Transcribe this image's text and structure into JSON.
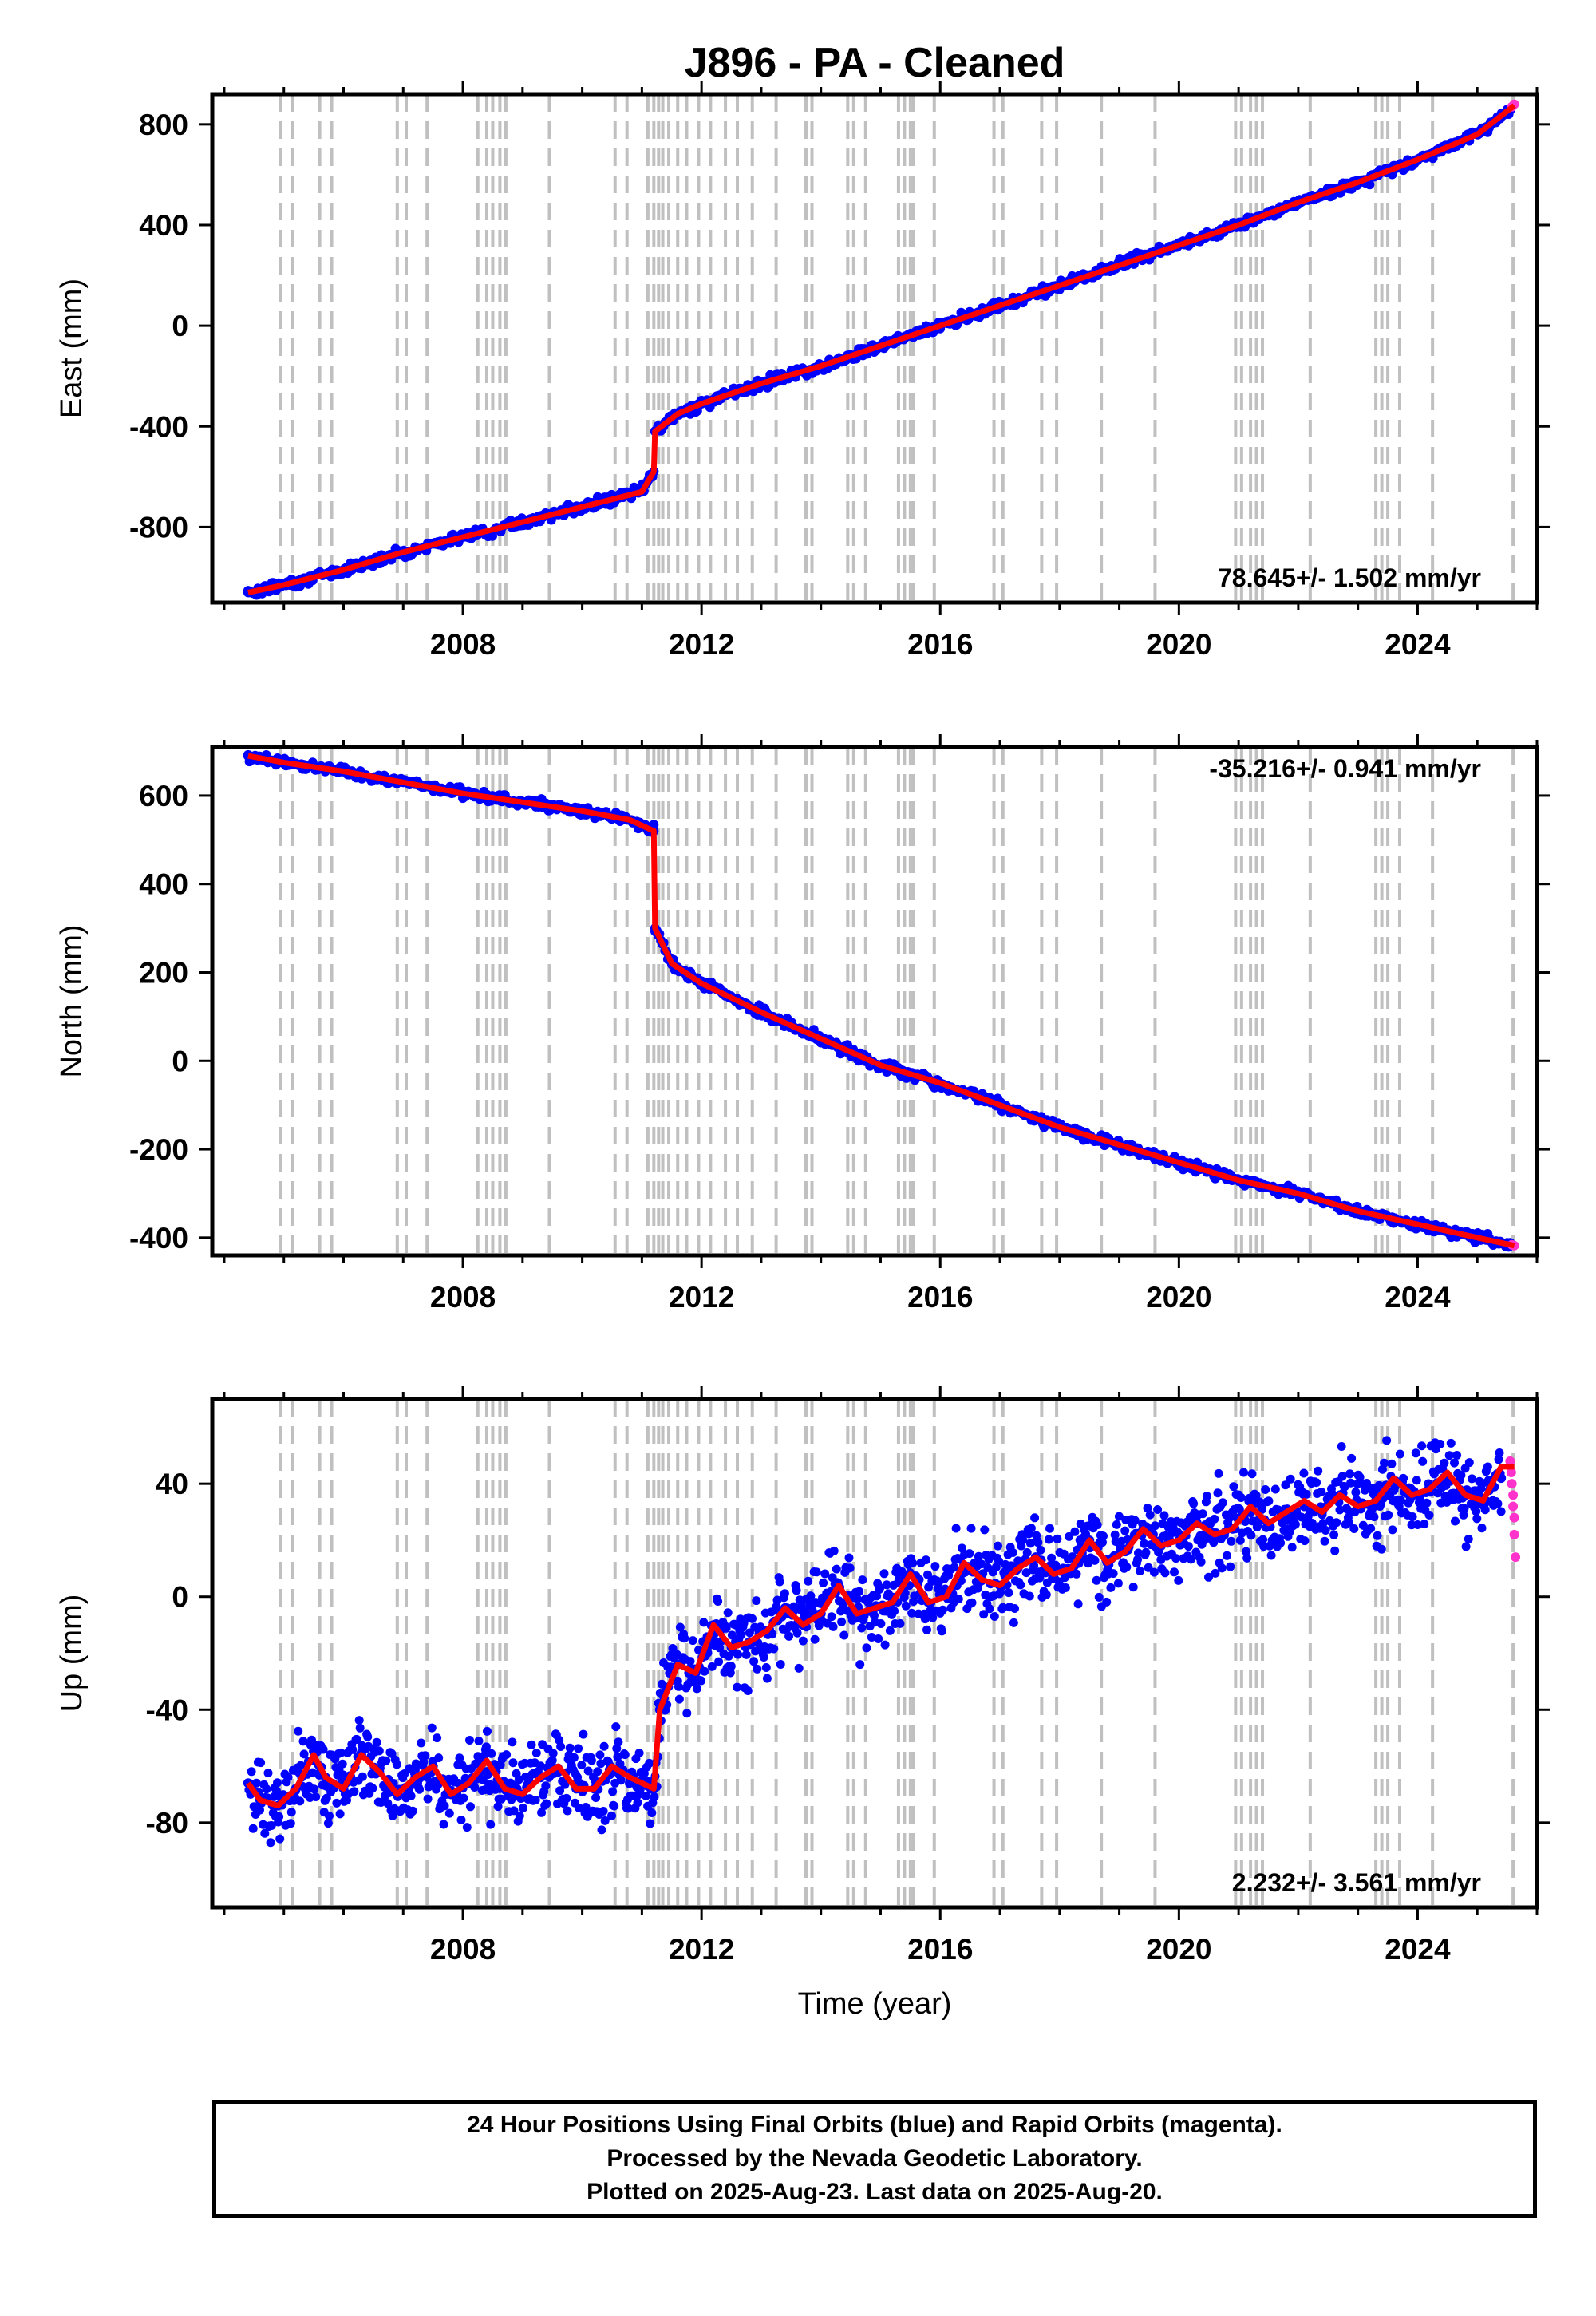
{
  "title": "J896  - PA - Cleaned",
  "colors": {
    "final_points": "#0000ff",
    "rapid_points": "#ff33cc",
    "model_line": "#ff0000",
    "event_lines": "#c0c0c0",
    "axes": "#000000"
  },
  "footer": {
    "line1": "24 Hour Positions Using Final Orbits (blue) and Rapid Orbits (magenta).",
    "line2": "Processed by the Nevada Geodetic Laboratory.",
    "line3": "Plotted on 2025-Aug-23. Last data on 2025-Aug-20."
  },
  "chart_data": [
    {
      "type": "scatter",
      "panel": "east",
      "ylabel": "East (mm)",
      "xlabel": "",
      "rate_label": "78.645+/- 1.502 mm/yr",
      "rate_label_position": "bottom-right",
      "xlim": [
        2003.8,
        2026.0
      ],
      "ylim": [
        -1100,
        920
      ],
      "xticks": [
        "2008",
        "2012",
        "2016",
        "2020",
        "2024"
      ],
      "xtick_values": [
        2008,
        2012,
        2016,
        2020,
        2024
      ],
      "yticks": [
        "800",
        "400",
        "0",
        "-400",
        "-800"
      ],
      "ytick_values": [
        800,
        400,
        0,
        -400,
        -800
      ],
      "series": [
        {
          "role": "final",
          "x": [
            2004.4,
            2005.0,
            2006.0,
            2007.0,
            2008.0,
            2009.0,
            2010.0,
            2011.0,
            2011.2,
            2011.22,
            2011.6,
            2012.0,
            2013.0,
            2014.0,
            2015.0,
            2016.0,
            2017.0,
            2018.0,
            2019.0,
            2020.0,
            2021.0,
            2022.0,
            2023.0,
            2024.0,
            2025.0,
            2025.55
          ],
          "y": [
            -1060,
            -1030,
            -970,
            -900,
            -840,
            -780,
            -720,
            -660,
            -580,
            -420,
            -350,
            -310,
            -230,
            -160,
            -80,
            0,
            80,
            160,
            240,
            320,
            400,
            490,
            570,
            660,
            760,
            860
          ]
        },
        {
          "role": "rapid",
          "x": [
            2025.58,
            2025.62
          ],
          "y": [
            870,
            880
          ]
        }
      ],
      "model": {
        "x": [
          2004.4,
          2005.0,
          2006.0,
          2007.0,
          2008.0,
          2009.0,
          2010.0,
          2011.0,
          2011.2,
          2011.22,
          2011.6,
          2012.0,
          2013.0,
          2014.0,
          2015.0,
          2016.0,
          2017.0,
          2018.0,
          2019.0,
          2020.0,
          2021.0,
          2022.0,
          2023.0,
          2024.0,
          2025.0,
          2025.62
        ],
        "y": [
          -1060,
          -1030,
          -970,
          -900,
          -840,
          -780,
          -720,
          -660,
          -580,
          -420,
          -350,
          -310,
          -230,
          -160,
          -80,
          0,
          80,
          160,
          240,
          320,
          400,
          490,
          570,
          660,
          760,
          875
        ]
      },
      "events": [
        2004.95,
        2005.15,
        2005.6,
        2005.8,
        2006.9,
        2007.05,
        2007.4,
        2008.25,
        2008.4,
        2008.5,
        2008.62,
        2008.72,
        2009.45,
        2010.55,
        2010.75,
        2011.1,
        2011.2,
        2011.28,
        2011.35,
        2011.45,
        2011.6,
        2011.75,
        2011.95,
        2012.15,
        2012.4,
        2012.6,
        2012.85,
        2013.25,
        2013.75,
        2013.85,
        2014.45,
        2014.55,
        2014.75,
        2015.3,
        2015.4,
        2015.5,
        2015.55,
        2015.9,
        2016.9,
        2017.05,
        2017.7,
        2017.95,
        2018.7,
        2019.6,
        2020.95,
        2021.05,
        2021.2,
        2021.3,
        2021.4,
        2022.2,
        2023.3,
        2023.4,
        2023.5,
        2023.7,
        2024.25,
        2025.6
      ]
    },
    {
      "type": "scatter",
      "panel": "north",
      "ylabel": "North (mm)",
      "xlabel": "",
      "rate_label": "-35.216+/- 0.941 mm/yr",
      "rate_label_position": "top-right",
      "xlim": [
        2003.8,
        2026.0
      ],
      "ylim": [
        -440,
        710
      ],
      "xticks": [
        "2008",
        "2012",
        "2016",
        "2020",
        "2024"
      ],
      "xtick_values": [
        2008,
        2012,
        2016,
        2020,
        2024
      ],
      "yticks": [
        "600",
        "400",
        "200",
        "0",
        "-200",
        "-400"
      ],
      "ytick_values": [
        600,
        400,
        200,
        0,
        -200,
        -400
      ],
      "series": [
        {
          "role": "final",
          "x": [
            2004.4,
            2005.0,
            2006.0,
            2007.0,
            2008.0,
            2009.0,
            2010.0,
            2010.8,
            2011.2,
            2011.22,
            2011.5,
            2012.0,
            2013.0,
            2014.0,
            2015.0,
            2016.0,
            2017.0,
            2018.0,
            2019.0,
            2020.0,
            2021.0,
            2022.0,
            2023.0,
            2024.0,
            2025.0,
            2025.55
          ],
          "y": [
            690,
            675,
            655,
            630,
            605,
            585,
            565,
            545,
            520,
            300,
            220,
            175,
            110,
            50,
            -10,
            -50,
            -100,
            -150,
            -190,
            -230,
            -270,
            -300,
            -340,
            -370,
            -400,
            -415
          ]
        },
        {
          "role": "rapid",
          "x": [
            2025.58,
            2025.62
          ],
          "y": [
            -416,
            -418
          ]
        }
      ],
      "model": {
        "x": [
          2004.4,
          2005.0,
          2006.0,
          2007.0,
          2008.0,
          2009.0,
          2010.0,
          2010.8,
          2011.2,
          2011.22,
          2011.5,
          2012.0,
          2013.0,
          2014.0,
          2015.0,
          2016.0,
          2017.0,
          2018.0,
          2019.0,
          2020.0,
          2021.0,
          2022.0,
          2023.0,
          2024.0,
          2025.0,
          2025.62
        ],
        "y": [
          690,
          675,
          655,
          630,
          605,
          585,
          565,
          545,
          520,
          300,
          220,
          175,
          110,
          50,
          -10,
          -50,
          -100,
          -150,
          -190,
          -230,
          -270,
          -300,
          -340,
          -370,
          -400,
          -418
        ]
      },
      "events": [
        2004.95,
        2005.15,
        2005.6,
        2005.8,
        2006.9,
        2007.05,
        2007.4,
        2008.25,
        2008.4,
        2008.5,
        2008.62,
        2008.72,
        2009.45,
        2010.55,
        2010.75,
        2011.1,
        2011.2,
        2011.28,
        2011.35,
        2011.45,
        2011.6,
        2011.75,
        2011.95,
        2012.15,
        2012.4,
        2012.6,
        2012.85,
        2013.25,
        2013.75,
        2013.85,
        2014.45,
        2014.55,
        2014.75,
        2015.3,
        2015.4,
        2015.5,
        2015.55,
        2015.9,
        2016.9,
        2017.05,
        2017.7,
        2017.95,
        2018.7,
        2019.6,
        2020.95,
        2021.05,
        2021.2,
        2021.3,
        2021.4,
        2022.2,
        2023.3,
        2023.4,
        2023.5,
        2023.7,
        2024.25,
        2025.6
      ]
    },
    {
      "type": "scatter",
      "panel": "up",
      "ylabel": "Up (mm)",
      "xlabel": "Time (year)",
      "rate_label": "2.232+/- 3.561 mm/yr",
      "rate_label_position": "bottom-right",
      "xlim": [
        2003.8,
        2026.0
      ],
      "ylim": [
        -110,
        70
      ],
      "xticks": [
        "2008",
        "2012",
        "2016",
        "2020",
        "2024"
      ],
      "xtick_values": [
        2008,
        2012,
        2016,
        2020,
        2024
      ],
      "yticks": [
        "40",
        "0",
        "-40",
        "-80"
      ],
      "ytick_values": [
        40,
        0,
        -40,
        -80
      ],
      "series": [
        {
          "role": "final",
          "x": [
            2004.4,
            2004.6,
            2004.9,
            2005.2,
            2005.5,
            2005.7,
            2006.0,
            2006.3,
            2006.6,
            2006.9,
            2007.2,
            2007.5,
            2007.8,
            2008.1,
            2008.4,
            2008.7,
            2009.0,
            2009.3,
            2009.6,
            2009.9,
            2010.2,
            2010.5,
            2010.8,
            2011.1,
            2011.2,
            2011.3,
            2011.6,
            2011.9,
            2012.2,
            2012.5,
            2012.8,
            2013.1,
            2013.4,
            2013.7,
            2014.0,
            2014.3,
            2014.6,
            2014.9,
            2015.2,
            2015.5,
            2015.8,
            2016.1,
            2016.4,
            2016.7,
            2017.0,
            2017.3,
            2017.6,
            2017.9,
            2018.2,
            2018.5,
            2018.8,
            2019.1,
            2019.4,
            2019.7,
            2020.0,
            2020.3,
            2020.6,
            2020.9,
            2021.2,
            2021.5,
            2021.8,
            2022.1,
            2022.4,
            2022.7,
            2023.0,
            2023.3,
            2023.6,
            2023.9,
            2024.2,
            2024.5,
            2024.8,
            2025.1,
            2025.4
          ],
          "y": [
            -66,
            -72,
            -74,
            -68,
            -58,
            -64,
            -68,
            -56,
            -62,
            -70,
            -64,
            -60,
            -70,
            -66,
            -62,
            -68,
            -70,
            -64,
            -62,
            -68,
            -68,
            -62,
            -64,
            -67,
            -68,
            -40,
            -24,
            -27,
            -10,
            -18,
            -16,
            -12,
            -4,
            -10,
            -6,
            4,
            -6,
            -4,
            -2,
            8,
            -2,
            0,
            10,
            6,
            4,
            10,
            14,
            8,
            10,
            20,
            12,
            16,
            24,
            18,
            20,
            26,
            22,
            24,
            30,
            26,
            30,
            32,
            30,
            36,
            32,
            34,
            40,
            36,
            38,
            42,
            36,
            34,
            42
          ]
        },
        {
          "role": "rapid",
          "x": [
            2025.55,
            2025.57,
            2025.58,
            2025.6,
            2025.6,
            2025.62,
            2025.62,
            2025.64
          ],
          "y": [
            48,
            44,
            40,
            36,
            32,
            28,
            22,
            14
          ]
        }
      ],
      "model": {
        "x": [
          2004.4,
          2004.6,
          2004.9,
          2005.2,
          2005.5,
          2005.7,
          2006.0,
          2006.3,
          2006.6,
          2006.9,
          2007.2,
          2007.5,
          2007.8,
          2008.1,
          2008.4,
          2008.7,
          2009.0,
          2009.3,
          2009.6,
          2009.9,
          2010.2,
          2010.5,
          2010.8,
          2011.1,
          2011.2,
          2011.3,
          2011.6,
          2011.9,
          2012.2,
          2012.5,
          2012.8,
          2013.1,
          2013.4,
          2013.7,
          2014.0,
          2014.3,
          2014.6,
          2014.9,
          2015.2,
          2015.5,
          2015.8,
          2016.1,
          2016.4,
          2016.7,
          2017.0,
          2017.3,
          2017.6,
          2017.9,
          2018.2,
          2018.5,
          2018.8,
          2019.1,
          2019.4,
          2019.7,
          2020.0,
          2020.3,
          2020.6,
          2020.9,
          2021.2,
          2021.5,
          2021.8,
          2022.1,
          2022.4,
          2022.7,
          2023.0,
          2023.3,
          2023.6,
          2023.9,
          2024.2,
          2024.5,
          2024.8,
          2025.1,
          2025.4,
          2025.62
        ],
        "y": [
          -66,
          -72,
          -74,
          -68,
          -56,
          -64,
          -68,
          -56,
          -62,
          -70,
          -64,
          -60,
          -70,
          -66,
          -58,
          -68,
          -70,
          -64,
          -60,
          -68,
          -68,
          -60,
          -64,
          -67,
          -68,
          -40,
          -24,
          -27,
          -10,
          -18,
          -16,
          -12,
          -4,
          -10,
          -6,
          4,
          -6,
          -4,
          -2,
          8,
          -2,
          0,
          12,
          6,
          4,
          10,
          14,
          8,
          10,
          20,
          12,
          16,
          24,
          18,
          20,
          26,
          22,
          24,
          32,
          26,
          30,
          34,
          30,
          36,
          32,
          34,
          42,
          36,
          38,
          44,
          36,
          34,
          46,
          46
        ]
      },
      "events": [
        2004.95,
        2005.15,
        2005.6,
        2005.8,
        2006.9,
        2007.05,
        2007.4,
        2008.25,
        2008.4,
        2008.5,
        2008.62,
        2008.72,
        2009.45,
        2010.55,
        2010.75,
        2011.1,
        2011.2,
        2011.28,
        2011.35,
        2011.45,
        2011.6,
        2011.75,
        2011.95,
        2012.15,
        2012.4,
        2012.6,
        2012.85,
        2013.25,
        2013.75,
        2013.85,
        2014.45,
        2014.55,
        2014.75,
        2015.3,
        2015.4,
        2015.5,
        2015.55,
        2015.9,
        2016.9,
        2017.05,
        2017.7,
        2017.95,
        2018.7,
        2019.6,
        2020.95,
        2021.05,
        2021.2,
        2021.3,
        2021.4,
        2022.2,
        2023.3,
        2023.4,
        2023.5,
        2023.7,
        2024.25,
        2025.6
      ]
    }
  ]
}
